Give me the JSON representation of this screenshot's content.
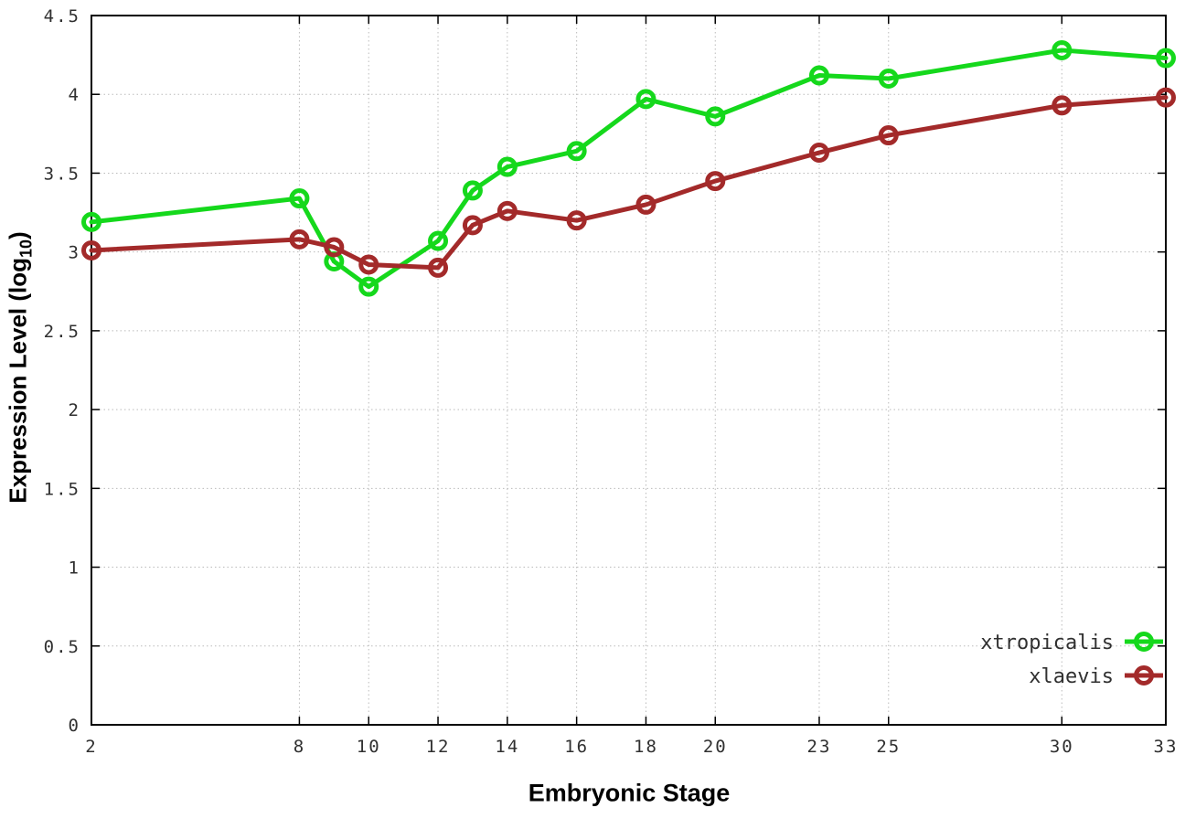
{
  "chart_data": {
    "type": "line",
    "title": "",
    "xlabel": "Embryonic Stage",
    "ylabel": "Expression Level (log10)",
    "ylabel_parts": {
      "pre": "Expression Level (log",
      "sub": "10",
      "post": ")"
    },
    "xlim": [
      2,
      33
    ],
    "ylim": [
      0,
      4.5
    ],
    "x_ticks": [
      2,
      8,
      10,
      12,
      14,
      16,
      18,
      20,
      23,
      25,
      30,
      33
    ],
    "y_ticks": [
      0,
      0.5,
      1,
      1.5,
      2,
      2.5,
      3,
      3.5,
      4,
      4.5
    ],
    "grid": true,
    "legend_position": "inside-bottom-right",
    "x": [
      2,
      8,
      9,
      10,
      12,
      13,
      14,
      16,
      18,
      20,
      23,
      25,
      30,
      33
    ],
    "series": [
      {
        "name": "xtropicalis",
        "color": "#15d81c",
        "values": [
          3.19,
          3.34,
          2.94,
          2.78,
          3.07,
          3.39,
          3.54,
          3.64,
          3.97,
          3.86,
          4.12,
          4.1,
          4.28,
          4.23
        ]
      },
      {
        "name": "xlaevis",
        "color": "#a32a2a",
        "values": [
          3.01,
          3.08,
          3.03,
          2.92,
          2.9,
          3.17,
          3.26,
          3.2,
          3.3,
          3.45,
          3.63,
          3.74,
          3.93,
          3.98
        ]
      }
    ],
    "colors": {
      "axis": "#000000",
      "grid": "#bbbbbb",
      "tick_label": "#303030"
    }
  }
}
